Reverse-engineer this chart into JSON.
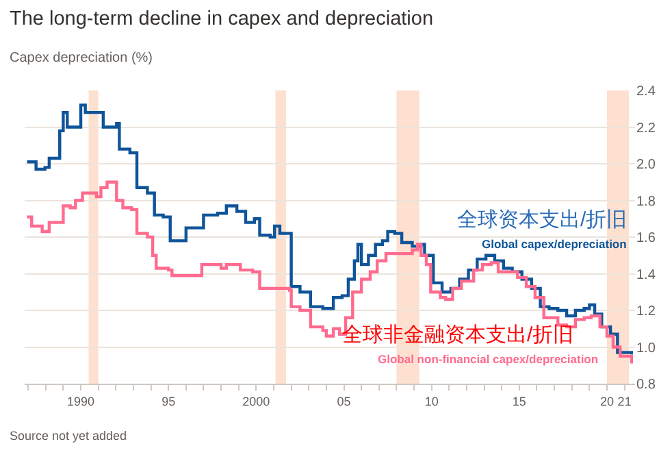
{
  "chart_data": {
    "type": "step",
    "title": "The long-term decline in capex and depreciation",
    "subtitle": "Capex depreciation (%)",
    "annotations": [
      "全球资本支出/折旧",
      "全球非金融资本支出/折旧",
      "Source not yet added"
    ],
    "series": [
      {
        "name": "Global capex/depreciation",
        "color": "#0f5499",
        "x": [
          1986.94,
          1987.45,
          1987.96,
          1988.2,
          1988.6,
          1988.8,
          1989.0,
          1989.23,
          1989.6,
          1990.0,
          1990.26,
          1991.15,
          1991.28,
          1991.8,
          1992.04,
          1992.2,
          1992.8,
          1993.2,
          1993.8,
          1994.2,
          1994.7,
          1995.1,
          1995.74,
          1996.0,
          1996.76,
          1997.0,
          1997.8,
          1998.3,
          1998.9,
          1999.4,
          1999.9,
          2000.2,
          2000.8,
          2001.05,
          2001.35,
          2001.86,
          2002.0,
          2002.5,
          2003.1,
          2003.8,
          2004.4,
          2004.9,
          2005.25,
          2005.6,
          2005.8,
          2006.0,
          2006.4,
          2006.8,
          2007.2,
          2007.5,
          2007.9,
          2008.3,
          2008.9,
          2009.4,
          2009.6,
          2009.9,
          2010.1,
          2010.6,
          2011.1,
          2011.6,
          2012.1,
          2012.6,
          2013.1,
          2013.6,
          2014.1,
          2014.6,
          2015.15,
          2015.7,
          2016.2,
          2016.7,
          2017.2,
          2017.7,
          2018.2,
          2018.7,
          2019.0,
          2019.3,
          2019.7,
          2020.2,
          2020.6,
          2021.0,
          2021.4
        ],
        "values": [
          2.01,
          1.97,
          1.98,
          2.03,
          2.03,
          2.18,
          2.28,
          2.2,
          2.2,
          2.32,
          2.28,
          2.28,
          2.2,
          2.2,
          2.22,
          2.08,
          2.06,
          1.87,
          1.84,
          1.72,
          1.71,
          1.58,
          1.58,
          1.65,
          1.65,
          1.72,
          1.73,
          1.77,
          1.74,
          1.68,
          1.7,
          1.61,
          1.6,
          1.66,
          1.62,
          1.62,
          1.33,
          1.3,
          1.22,
          1.21,
          1.27,
          1.28,
          1.37,
          1.47,
          1.56,
          1.45,
          1.5,
          1.56,
          1.58,
          1.63,
          1.62,
          1.57,
          1.55,
          1.56,
          1.5,
          1.5,
          1.35,
          1.3,
          1.32,
          1.37,
          1.42,
          1.48,
          1.5,
          1.47,
          1.43,
          1.41,
          1.37,
          1.32,
          1.22,
          1.21,
          1.2,
          1.17,
          1.2,
          1.21,
          1.23,
          1.18,
          1.11,
          1.07,
          0.97,
          0.97,
          0.96
        ]
      },
      {
        "name": "Global non-financial capex/depreciation",
        "color": "#ff6b8f",
        "x": [
          1986.94,
          1987.2,
          1987.8,
          1988.2,
          1988.7,
          1989.0,
          1989.4,
          1989.7,
          1990.1,
          1990.6,
          1990.9,
          1991.15,
          1991.5,
          1991.8,
          1992.04,
          1992.4,
          1992.9,
          1993.2,
          1993.8,
          1994.1,
          1994.3,
          1995.0,
          1995.2,
          1996.0,
          1996.9,
          1997.5,
          1998.0,
          1998.3,
          1999.1,
          1999.8,
          2000.2,
          2000.8,
          2001.9,
          2002.0,
          2002.5,
          2003.1,
          2003.8,
          2004.0,
          2004.4,
          2004.75,
          2005.1,
          2005.5,
          2006.0,
          2006.5,
          2006.9,
          2007.4,
          2008.0,
          2008.5,
          2008.9,
          2009.2,
          2009.4,
          2009.7,
          2009.95,
          2010.5,
          2010.8,
          2011.2,
          2011.7,
          2012.4,
          2012.9,
          2013.4,
          2013.8,
          2014.4,
          2014.9,
          2015.4,
          2015.9,
          2016.4,
          2017.2,
          2017.7,
          2018.2,
          2018.7,
          2019.1,
          2019.6,
          2020.0,
          2020.35,
          2020.75,
          2021.4
        ],
        "values": [
          1.71,
          1.66,
          1.63,
          1.68,
          1.68,
          1.77,
          1.76,
          1.8,
          1.84,
          1.84,
          1.82,
          1.87,
          1.9,
          1.9,
          1.8,
          1.76,
          1.75,
          1.62,
          1.6,
          1.5,
          1.43,
          1.42,
          1.39,
          1.39,
          1.45,
          1.45,
          1.43,
          1.45,
          1.42,
          1.41,
          1.32,
          1.32,
          1.31,
          1.22,
          1.2,
          1.11,
          1.09,
          1.06,
          1.1,
          1.07,
          1.16,
          1.3,
          1.37,
          1.41,
          1.47,
          1.51,
          1.51,
          1.51,
          1.53,
          1.56,
          1.5,
          1.45,
          1.3,
          1.27,
          1.26,
          1.32,
          1.36,
          1.42,
          1.45,
          1.46,
          1.41,
          1.41,
          1.38,
          1.33,
          1.27,
          1.16,
          1.12,
          1.11,
          1.15,
          1.16,
          1.17,
          1.11,
          1.06,
          1.0,
          0.95,
          0.91
        ]
      }
    ],
    "bands": [
      {
        "axis": "x",
        "from": 1990.45,
        "to": 1991.0,
        "color": "#fde0d0"
      },
      {
        "axis": "x",
        "from": 2001.1,
        "to": 2001.7,
        "color": "#fde0d0"
      },
      {
        "axis": "x",
        "from": 2008.0,
        "to": 2009.3,
        "color": "#fde0d0"
      },
      {
        "axis": "x",
        "from": 2020.0,
        "to": 2021.25,
        "color": "#fde0d0"
      }
    ],
    "xlim": [
      1986.8,
      2021.6
    ],
    "xticks": [
      {
        "value": 1987,
        "label": null
      },
      {
        "value": 1988,
        "label": null
      },
      {
        "value": 1989,
        "label": null
      },
      1990,
      {
        "value": 1991,
        "label": null
      },
      {
        "value": 1992,
        "label": null
      },
      {
        "value": 1993,
        "label": null
      },
      {
        "value": 1994,
        "label": null
      },
      {
        "value": 1995,
        "label": "95"
      },
      {
        "value": 1996,
        "label": null
      },
      {
        "value": 1997,
        "label": null
      },
      {
        "value": 1998,
        "label": null
      },
      {
        "value": 1999,
        "label": null
      },
      2000,
      {
        "value": 2001,
        "label": null
      },
      {
        "value": 2002,
        "label": null
      },
      {
        "value": 2003,
        "label": null
      },
      {
        "value": 2004,
        "label": null
      },
      {
        "value": 2005,
        "label": "05"
      },
      {
        "value": 2006,
        "label": null
      },
      {
        "value": 2007,
        "label": null
      },
      {
        "value": 2008,
        "label": null
      },
      {
        "value": 2009,
        "label": null
      },
      {
        "value": 2010,
        "label": "10"
      },
      {
        "value": 2011,
        "label": null
      },
      {
        "value": 2012,
        "label": null
      },
      {
        "value": 2013,
        "label": null
      },
      {
        "value": 2014,
        "label": null
      },
      {
        "value": 2015,
        "label": "15"
      },
      {
        "value": 2016,
        "label": null
      },
      {
        "value": 2017,
        "label": null
      },
      {
        "value": 2018,
        "label": null
      },
      {
        "value": 2019,
        "label": null
      },
      {
        "value": 2020,
        "label": "20"
      },
      {
        "value": 2021,
        "label": "21"
      }
    ],
    "ylim": [
      0.8,
      2.4
    ],
    "yticks": [
      0.8,
      {
        "value": 1.0,
        "label": "1.0"
      },
      1.2,
      1.4,
      1.6,
      1.8,
      {
        "value": 2.0,
        "label": "2.0"
      },
      2.2,
      2.4
    ],
    "grid": "y",
    "legend": false
  }
}
